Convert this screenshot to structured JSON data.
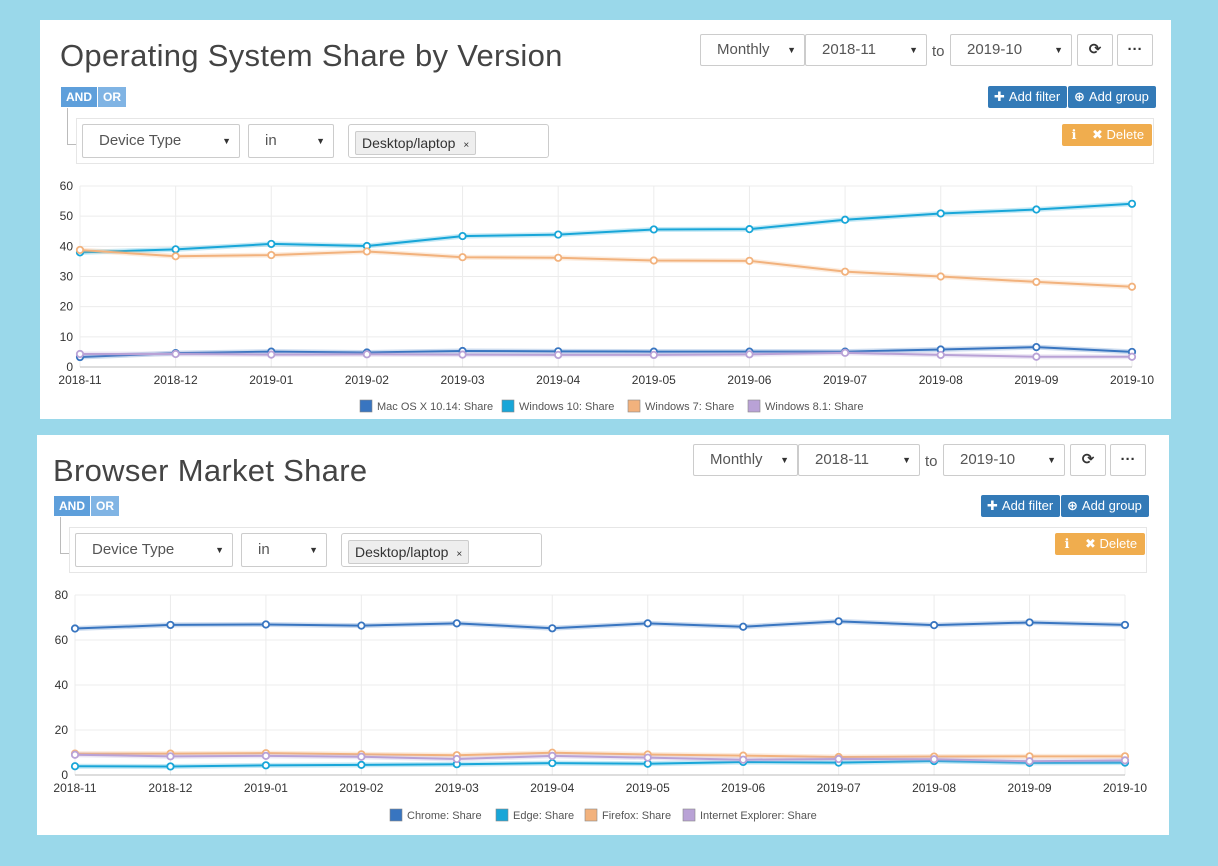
{
  "colors": {
    "series": [
      "#3875c0",
      "#18a6d8",
      "#f2b27d",
      "#b9a2d6"
    ]
  },
  "icons": {
    "refresh": "refresh-icon",
    "more": "more-options-icon",
    "plus": "plus-icon",
    "plus_circle": "plus-circle-icon",
    "info": "info-icon",
    "close": "close-icon",
    "caret": "caret-down-icon"
  },
  "panels": [
    {
      "title": "Operating System Share by Version",
      "controls": {
        "interval": "Monthly",
        "from": "2018-11",
        "to_label": "to",
        "to": "2019-10",
        "refresh_glyph": "⟳",
        "more_glyph": "···"
      },
      "logic": {
        "and": "AND",
        "or": "OR"
      },
      "buttons": {
        "add_filter": "Add filter",
        "add_group": "Add group",
        "delete": "Delete"
      },
      "filter": {
        "field": "Device Type",
        "operator": "in",
        "value_tag": "Desktop/laptop",
        "tag_close": "×"
      }
    },
    {
      "title": "Browser Market Share",
      "controls": {
        "interval": "Monthly",
        "from": "2018-11",
        "to_label": "to",
        "to": "2019-10",
        "refresh_glyph": "⟳",
        "more_glyph": "···"
      },
      "logic": {
        "and": "AND",
        "or": "OR"
      },
      "buttons": {
        "add_filter": "Add filter",
        "add_group": "Add group",
        "delete": "Delete"
      },
      "filter": {
        "field": "Device Type",
        "operator": "in",
        "value_tag": "Desktop/laptop",
        "tag_close": "×"
      }
    }
  ],
  "chart_data": [
    {
      "type": "line",
      "x": [
        "2018-11",
        "2018-12",
        "2019-01",
        "2019-02",
        "2019-03",
        "2019-04",
        "2019-05",
        "2019-06",
        "2019-07",
        "2019-08",
        "2019-09",
        "2019-10"
      ],
      "ylim": [
        0,
        60
      ],
      "yticks": [
        0,
        10,
        20,
        30,
        40,
        50,
        60
      ],
      "grid": true,
      "legend": "bottom",
      "series": [
        {
          "name": "Mac OS X 10.14: Share",
          "values": [
            3.3,
            4.6,
            5.1,
            4.8,
            5.3,
            5.2,
            5.1,
            5.1,
            5.1,
            5.8,
            6.6,
            5.0
          ]
        },
        {
          "name": "Windows 10: Share",
          "values": [
            38.0,
            39.0,
            40.8,
            40.1,
            43.4,
            43.9,
            45.6,
            45.7,
            48.8,
            50.9,
            52.2,
            54.1
          ]
        },
        {
          "name": "Windows 7: Share",
          "values": [
            38.8,
            36.7,
            37.1,
            38.3,
            36.4,
            36.2,
            35.3,
            35.2,
            31.6,
            30.0,
            28.2,
            26.6
          ]
        },
        {
          "name": "Windows 8.1: Share",
          "values": [
            4.3,
            4.3,
            4.1,
            4.2,
            4.1,
            4.0,
            4.0,
            4.2,
            4.7,
            4.0,
            3.4,
            3.4
          ]
        }
      ]
    },
    {
      "type": "line",
      "x": [
        "2018-11",
        "2018-12",
        "2019-01",
        "2019-02",
        "2019-03",
        "2019-04",
        "2019-05",
        "2019-06",
        "2019-07",
        "2019-08",
        "2019-09",
        "2019-10"
      ],
      "ylim": [
        0,
        80
      ],
      "yticks": [
        0,
        20,
        40,
        60,
        80
      ],
      "grid": true,
      "legend": "bottom",
      "series": [
        {
          "name": "Chrome: Share",
          "values": [
            65.1,
            66.7,
            66.9,
            66.4,
            67.4,
            65.2,
            67.4,
            65.9,
            68.3,
            66.6,
            67.8,
            66.7
          ]
        },
        {
          "name": "Edge: Share",
          "values": [
            3.9,
            3.8,
            4.3,
            4.5,
            4.8,
            5.3,
            5.0,
            5.8,
            5.5,
            6.2,
            5.4,
            5.5
          ]
        },
        {
          "name": "Firefox: Share",
          "values": [
            9.5,
            9.5,
            9.7,
            9.2,
            8.8,
            9.9,
            9.1,
            8.6,
            8.0,
            8.2,
            8.3,
            8.3
          ]
        },
        {
          "name": "Internet Explorer: Share",
          "values": [
            9.0,
            8.3,
            8.5,
            8.1,
            7.1,
            8.5,
            7.7,
            6.8,
            7.1,
            7.0,
            6.1,
            6.5
          ]
        }
      ]
    }
  ]
}
